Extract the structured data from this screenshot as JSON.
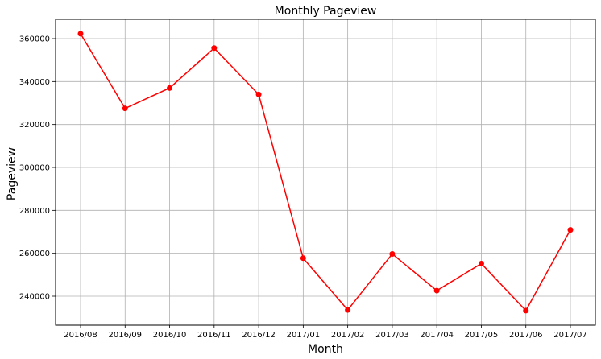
{
  "chart_data": {
    "type": "line",
    "title": "Monthly Pageview",
    "xlabel": "Month",
    "ylabel": "Pageview",
    "categories": [
      "2016/08",
      "2016/09",
      "2016/10",
      "2016/11",
      "2016/12",
      "2017/01",
      "2017/02",
      "2017/03",
      "2017/04",
      "2017/05",
      "2017/06",
      "2017/07"
    ],
    "series": [
      {
        "values": [
          362300,
          327500,
          337000,
          355600,
          334000,
          257700,
          233600,
          259700,
          242600,
          255200,
          233300,
          270900
        ],
        "color": "#ff0000",
        "marker": "circle"
      }
    ],
    "ylim": [
      226500,
      369000
    ],
    "yticks": [
      240000,
      260000,
      280000,
      300000,
      320000,
      340000,
      360000
    ],
    "grid": true,
    "legend": "none"
  }
}
